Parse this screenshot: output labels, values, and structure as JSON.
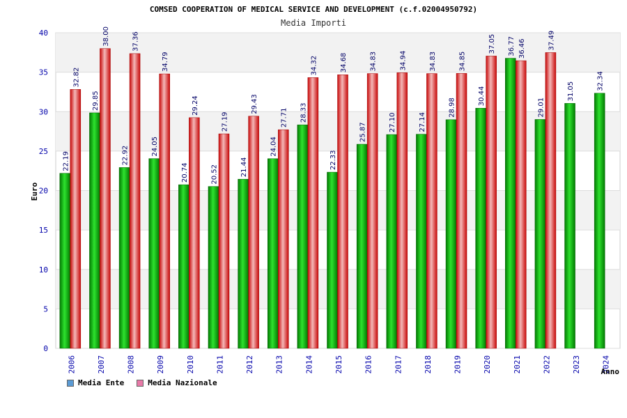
{
  "chart_data": {
    "type": "bar",
    "title": "COMSED COOPERATION OF MEDICAL SERVICE AND DEVELOPMENT (c.f.02004950792)",
    "subtitle": "Media Importi",
    "xlabel": "Anno",
    "ylabel": "Euro",
    "ylim": [
      0,
      40
    ],
    "yticks": [
      0,
      5,
      10,
      15,
      20,
      25,
      30,
      35,
      40
    ],
    "categories": [
      "2006",
      "2007",
      "2008",
      "2009",
      "2010",
      "2011",
      "2012",
      "2013",
      "2014",
      "2015",
      "2016",
      "2017",
      "2018",
      "2019",
      "2020",
      "2021",
      "2022",
      "2023",
      "2024"
    ],
    "series": [
      {
        "name": "Media Ente",
        "values": [
          22.19,
          29.85,
          22.92,
          24.05,
          20.74,
          20.52,
          21.44,
          24.04,
          28.33,
          22.33,
          25.87,
          27.1,
          27.14,
          28.98,
          30.44,
          36.77,
          29.01,
          31.05,
          32.34
        ],
        "labels": [
          "22.19",
          "29.85",
          "22.92",
          "24.05",
          "20.74",
          "20.52",
          "21.44",
          "24.04",
          "28.33",
          "22.33",
          "25.87",
          "27.10",
          "27.14",
          "28.98",
          "30.44",
          "36.77",
          "29.01",
          "31.05",
          "32.34"
        ]
      },
      {
        "name": "Media Nazionale",
        "values": [
          32.82,
          38.0,
          37.36,
          34.79,
          29.24,
          27.19,
          29.43,
          27.71,
          34.32,
          34.68,
          34.83,
          34.94,
          34.83,
          34.85,
          37.05,
          36.46,
          37.49,
          null,
          null
        ],
        "labels": [
          "32.82",
          "38.00",
          "37.36",
          "34.79",
          "29.24",
          "27.19",
          "29.43",
          "27.71",
          "34.32",
          "34.68",
          "34.83",
          "34.94",
          "34.83",
          "34.85",
          "37.05",
          "36.46",
          "37.49",
          null,
          null
        ]
      }
    ],
    "legend_position": "bottom-left"
  },
  "legend": {
    "items": [
      {
        "label": "Media Ente",
        "color": "#5b9bd5"
      },
      {
        "label": "Media Nazionale",
        "color": "#e87aa8"
      }
    ]
  },
  "colors": {
    "ente": "#08b808",
    "nazionale": "#e81818",
    "axis_text": "#0000aa",
    "grid_band": "#f2f2f2"
  }
}
